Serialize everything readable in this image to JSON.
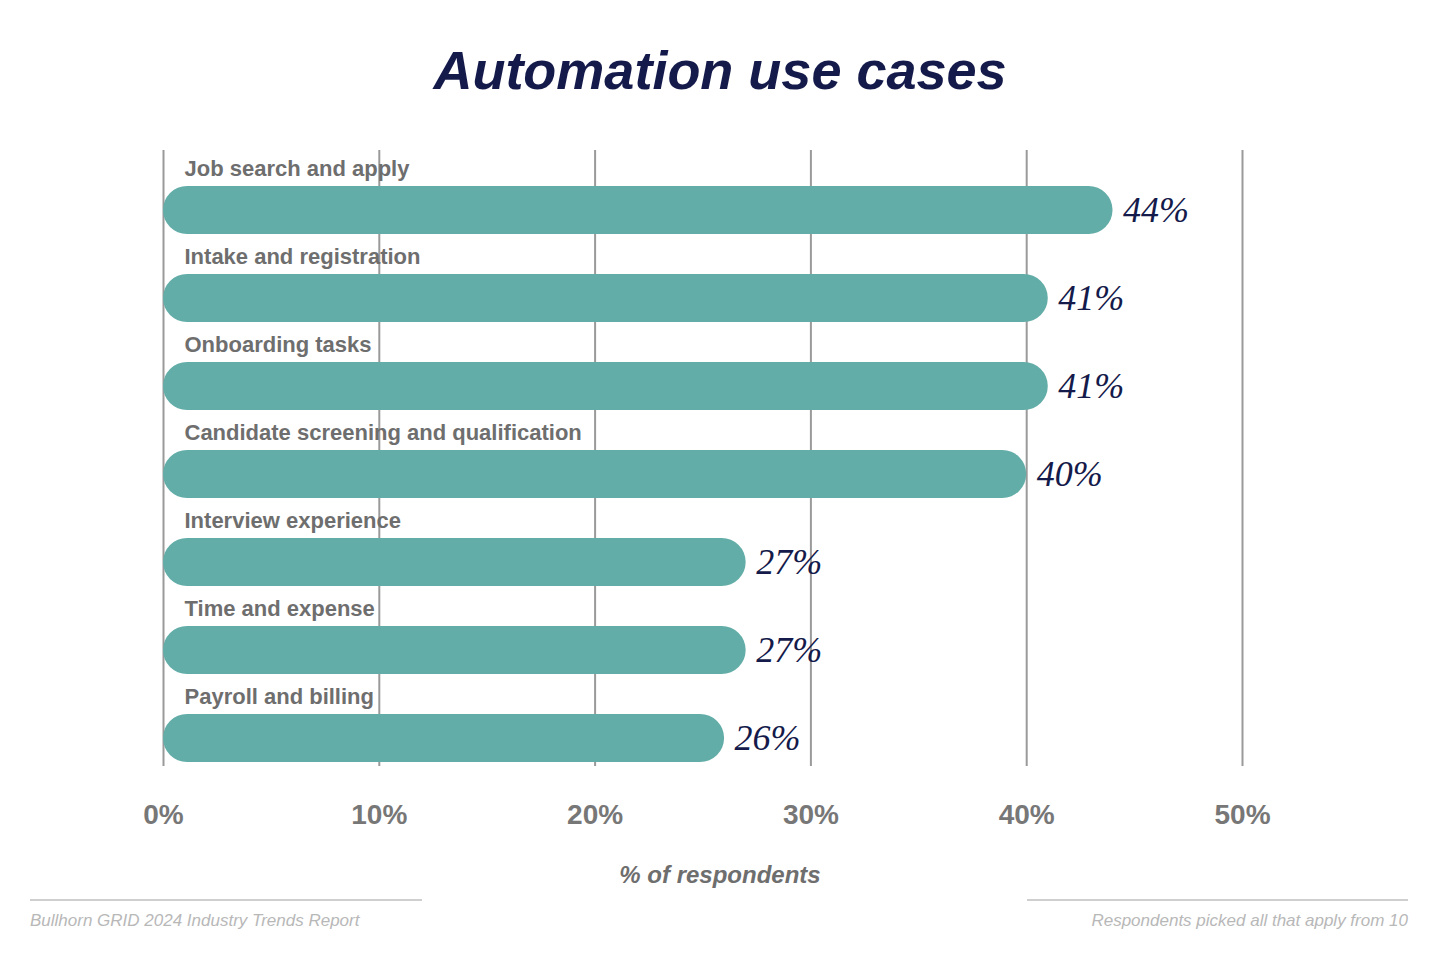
{
  "chart_data": {
    "type": "bar",
    "title": "Automation use cases",
    "orientation": "horizontal",
    "categories": [
      "Job search and apply",
      "Intake and registration",
      "Onboarding tasks",
      "Candidate screening and qualification",
      "Interview experience",
      "Time and expense",
      "Payroll and billing"
    ],
    "values": [
      44,
      41,
      41,
      40,
      27,
      27,
      26
    ],
    "value_labels": [
      "44%",
      "41%",
      "41%",
      "40%",
      "27%",
      "27%",
      "26%"
    ],
    "data_labels": true,
    "color": "#62ada7",
    "xlabel": "% of respondents",
    "xlim": [
      0,
      50
    ],
    "xticks": [
      {
        "value": 0,
        "label": "0%"
      },
      {
        "value": 10,
        "label": "10%"
      },
      {
        "value": 20,
        "label": "20%"
      },
      {
        "value": 30,
        "label": "30%"
      },
      {
        "value": 40,
        "label": "40%"
      },
      {
        "value": 50,
        "label": "50%"
      }
    ],
    "grid": true,
    "annotations": [
      "Bullhorn GRID 2024 Industry Trends Report",
      "Respondents picked all that apply from 10"
    ]
  }
}
